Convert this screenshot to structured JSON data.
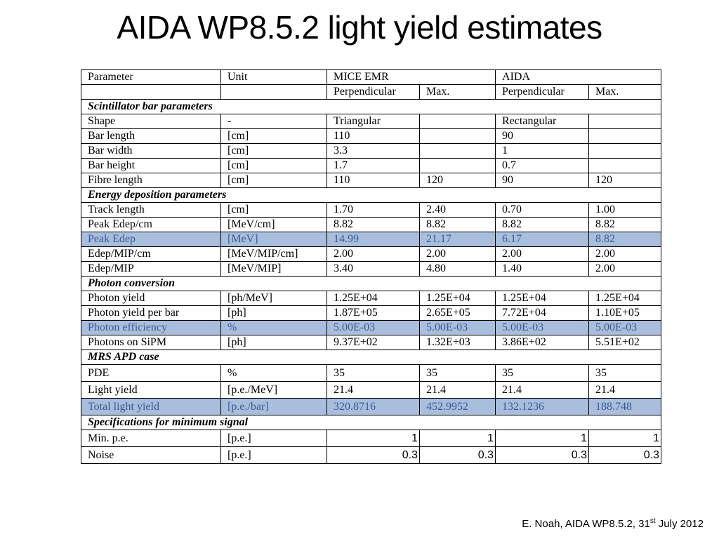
{
  "title": "AIDA WP8.5.2 light yield estimates",
  "table": {
    "header1": [
      "Parameter",
      "Unit",
      "MICE EMR",
      "AIDA"
    ],
    "header2": [
      "",
      "",
      "Perpendicular",
      "Max.",
      "Perpendicular",
      "Max."
    ],
    "sections": [
      {
        "title": "Scintillator bar parameters",
        "rows": [
          [
            "Shape",
            "-",
            "Triangular",
            "",
            "Rectangular",
            ""
          ],
          [
            "Bar length",
            "[cm]",
            "110",
            "",
            "90",
            ""
          ],
          [
            "Bar width",
            "[cm]",
            "3.3",
            "",
            "1",
            ""
          ],
          [
            "Bar height",
            "[cm]",
            "1.7",
            "",
            "0.7",
            ""
          ],
          [
            "Fibre length",
            "[cm]",
            "110",
            "120",
            "90",
            "120"
          ]
        ]
      },
      {
        "title": "Energy deposition parameters",
        "rows": [
          [
            "Track length",
            "[cm]",
            "1.70",
            "2.40",
            "0.70",
            "1.00"
          ],
          [
            "Peak Edep/cm",
            "[MeV/cm]",
            "8.82",
            "8.82",
            "8.82",
            "8.82"
          ],
          [
            "Peak Edep",
            "[MeV]",
            "14.99",
            "21.17",
            "6.17",
            "8.82"
          ],
          [
            "Edep/MIP/cm",
            "[MeV/MIP/cm]",
            "2.00",
            "2.00",
            "2.00",
            "2.00"
          ],
          [
            "Edep/MIP",
            "[MeV/MIP]",
            "3.40",
            "4.80",
            "1.40",
            "2.00"
          ]
        ]
      },
      {
        "title": "Photon conversion",
        "rows": [
          [
            "Photon yield",
            "[ph/MeV]",
            "1.25E+04",
            "1.25E+04",
            "1.25E+04",
            "1.25E+04"
          ],
          [
            "Photon yield per bar",
            "[ph]",
            "1.87E+05",
            "2.65E+05",
            "7.72E+04",
            "1.10E+05"
          ],
          [
            "Photon efficiency",
            "%",
            "5.00E-03",
            "5.00E-03",
            "5.00E-03",
            "5.00E-03"
          ],
          [
            "Photons on SiPM",
            "[ph]",
            "9.37E+02",
            "1.32E+03",
            "3.86E+02",
            "5.51E+02"
          ]
        ]
      },
      {
        "title": "MRS APD case",
        "rows": [
          [
            "PDE",
            "%",
            "35",
            "35",
            "35",
            "35"
          ],
          [
            "Light yield",
            "[p.e./MeV]",
            "21.4",
            "21.4",
            "21.4",
            "21.4"
          ],
          [
            "Total light yield",
            "[p.e./bar]",
            "320.8716",
            "452.9952",
            "132.1236",
            "188.748"
          ]
        ]
      },
      {
        "title": "Specifications for minimum signal",
        "rows": [
          [
            "Min. p.e.",
            "[p.e.]",
            "1",
            "1",
            "1",
            "1"
          ],
          [
            "Noise",
            "[p.e.]",
            "0.3",
            "0.3",
            "0.3",
            "0.3"
          ]
        ]
      }
    ]
  },
  "footer": {
    "text": "E. Noah, AIDA WP8.5.2, 31",
    "sup": "st",
    "tail": " July 2012"
  }
}
